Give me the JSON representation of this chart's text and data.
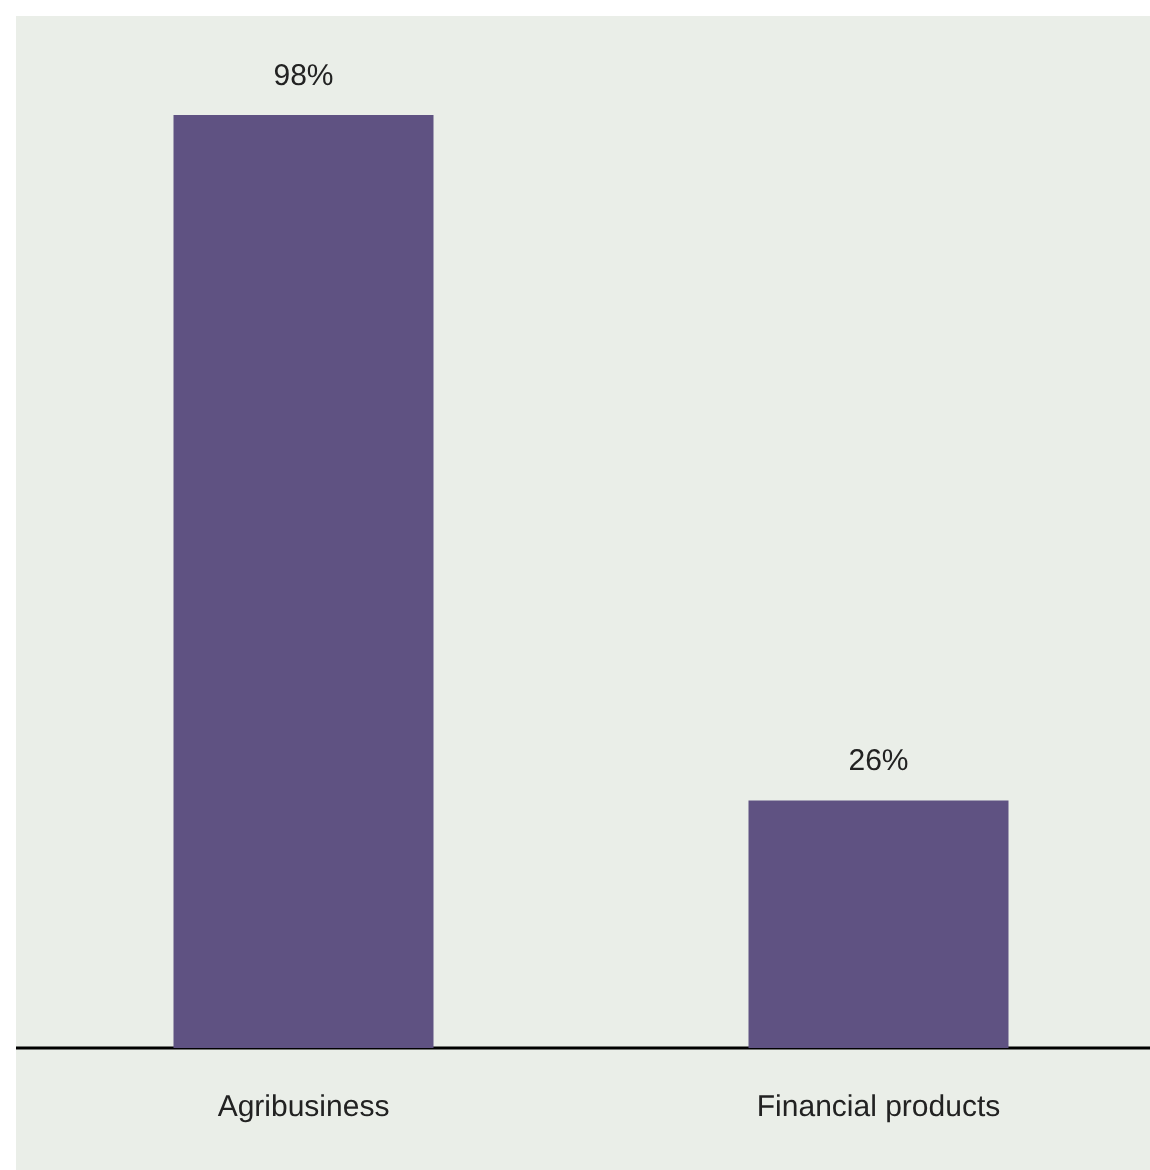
{
  "chart_data": {
    "type": "bar",
    "categories": [
      "Agribusiness",
      "Financial products"
    ],
    "values": [
      98,
      26
    ],
    "color": "#5f5282",
    "value_labels": [
      "98%",
      "26%"
    ]
  }
}
